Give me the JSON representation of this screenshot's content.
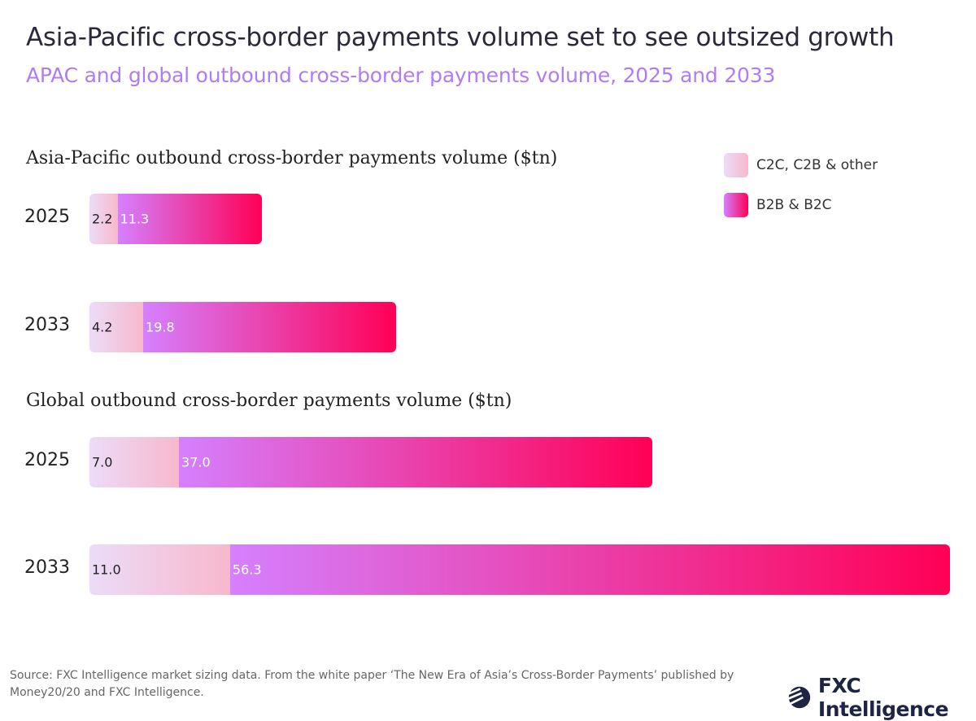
{
  "title": "Asia-Pacific cross-border payments volume set to see outsized growth",
  "subtitle": "APAC and global outbound cross-border payments volume, 2025 and 2033",
  "legend": [
    "C2C, C2B & other",
    "B2B & B2C"
  ],
  "colors": {
    "c2c": [
      "#ecdcf8",
      "#f7b8cc"
    ],
    "b2b": [
      "#d580ff",
      "#ff0055"
    ]
  },
  "chart_data": [
    {
      "type": "bar",
      "orientation": "horizontal",
      "stacked": true,
      "title": "Asia-Pacific outbound cross-border payments volume ($tn)",
      "categories": [
        "2025",
        "2033"
      ],
      "series": [
        {
          "name": "C2C, C2B & other",
          "values": [
            2.2,
            4.2
          ]
        },
        {
          "name": "B2B & B2C",
          "values": [
            11.3,
            19.8
          ]
        }
      ]
    },
    {
      "type": "bar",
      "orientation": "horizontal",
      "stacked": true,
      "title": "Global outbound cross-border payments volume ($tn)",
      "categories": [
        "2025",
        "2033"
      ],
      "series": [
        {
          "name": "C2C, C2B & other",
          "values": [
            7.0,
            11.0
          ]
        },
        {
          "name": "B2B & B2C",
          "values": [
            37.0,
            56.3
          ]
        }
      ]
    }
  ],
  "labels": {
    "apac": [
      [
        "2.2",
        "11.3"
      ],
      [
        "4.2",
        "19.8"
      ]
    ],
    "global": [
      [
        "7.0",
        "37.0"
      ],
      [
        "11.0",
        "56.3"
      ]
    ]
  },
  "source": "Source: FXC Intelligence market sizing data. From the white paper ‘The New Era of Asia’s Cross-Border Payments’ published by Money20/20 and FXC Intelligence.",
  "logo": "FXC Intelligence"
}
